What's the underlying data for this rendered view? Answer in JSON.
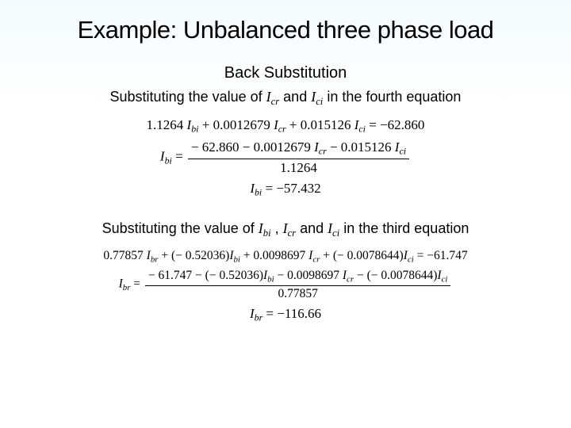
{
  "title": "Example: Unbalanced three phase load",
  "subtitle": "Back Substitution",
  "line1": {
    "prefix": "Substituting the value of ",
    "v1": "I",
    "v1sub": "cr",
    "mid": " and ",
    "v2": "I",
    "v2sub": "ci",
    "suffix": " in the fourth equation"
  },
  "eq1": {
    "c1": "1.1264",
    "t1": "I",
    "t1s": "bi",
    "c2": "0.0012679",
    "t2": "I",
    "t2s": "cr",
    "c3": "0.015126",
    "t3": "I",
    "t3s": "ci",
    "rhs": "−62.860"
  },
  "eq2": {
    "lhs": "I",
    "lhss": "bi",
    "n1": "− 62.860",
    "n2": "0.0012679",
    "n2t": "I",
    "n2ts": "cr",
    "n3": "0.015126",
    "n3t": "I",
    "n3ts": "ci",
    "den": "1.1264"
  },
  "eq3": {
    "lhs": "I",
    "lhss": "bi",
    "rhs": "−57.432"
  },
  "line2": {
    "prefix": "Substituting the value of ",
    "v1": "I",
    "v1sub": "bi",
    "mid1": " , ",
    "v2": "I",
    "v2sub": "cr",
    "mid2": " and ",
    "v3": "I",
    "v3sub": "ci",
    "suffix": " in the third equation"
  },
  "eq4": {
    "c1": "0.77857",
    "t1": "I",
    "t1s": "br",
    "c2": "− 0.52036",
    "t2": "I",
    "t2s": "bi",
    "c3": "0.0098697",
    "t3": "I",
    "t3s": "cr",
    "c4": "− 0.0078644",
    "t4": "I",
    "t4s": "ci",
    "rhs": "−61.747"
  },
  "eq5": {
    "lhs": "I",
    "lhss": "br",
    "n1": "− 61.747",
    "n2p": "− 0.52036",
    "n2t": "I",
    "n2ts": "bi",
    "n3": "0.0098697",
    "n3t": "I",
    "n3ts": "cr",
    "n4p": "− 0.0078644",
    "n4t": "I",
    "n4ts": "ci",
    "den": "0.77857"
  },
  "eq6": {
    "lhs": "I",
    "lhss": "br",
    "rhs": "−116.66"
  }
}
